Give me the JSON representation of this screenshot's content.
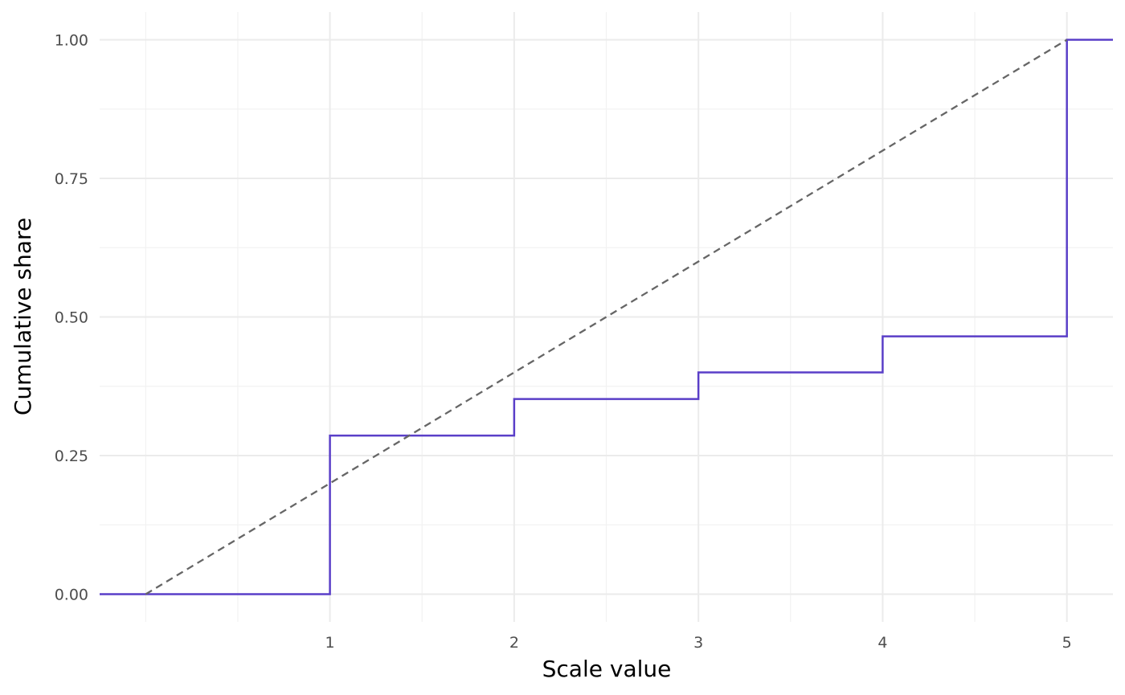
{
  "chart_data": {
    "type": "line",
    "title": "",
    "xlabel": "Scale value",
    "ylabel": "Cumulative share",
    "xlim": [
      -0.25,
      5.25
    ],
    "ylim": [
      -0.05,
      1.05
    ],
    "x_ticks": [
      1,
      2,
      3,
      4,
      5
    ],
    "y_ticks": [
      0,
      0.25,
      0.5,
      0.75,
      1
    ],
    "y_tick_labels": [
      "0.00",
      "0.25",
      "0.50",
      "0.75",
      "1.00"
    ],
    "grid": true,
    "legend": "none",
    "series": [
      {
        "style": "step",
        "color": "#5a3fc8",
        "x": [
          -0.25,
          1,
          2,
          3,
          4,
          5,
          5.25
        ],
        "y": [
          0,
          0.286,
          0.352,
          0.4,
          0.465,
          1,
          1
        ]
      },
      {
        "style": "dashed",
        "color": "#666666",
        "x": [
          0,
          5
        ],
        "y": [
          0,
          1
        ]
      }
    ]
  }
}
